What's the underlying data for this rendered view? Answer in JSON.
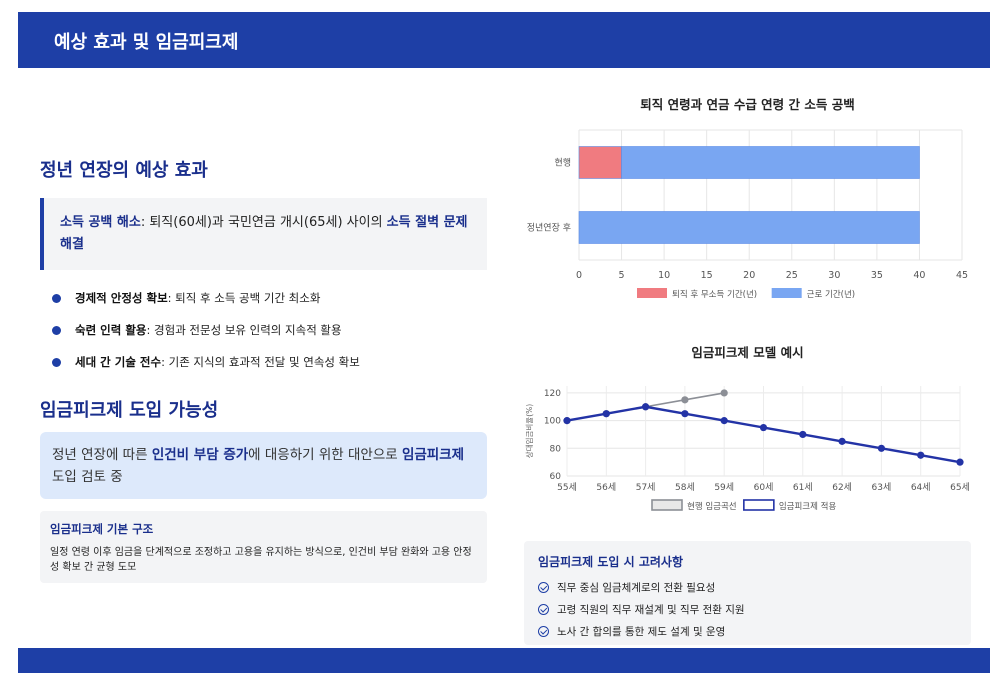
{
  "header": {
    "title": "예상 효과 및 임금피크제"
  },
  "effects": {
    "heading": "정년 연장의 예상 효과",
    "callout": {
      "label": "소득 공백 해소",
      "text1": ": 퇴직(60세)과 국민연금 개시(65세) 사이의 ",
      "emph": "소득 절벽 문제 해결"
    },
    "bullets": [
      {
        "label": "경제적 안정성 확보",
        "text": ": 퇴직 후 소득 공백 기간 최소화"
      },
      {
        "label": "숙련 인력 활용",
        "text": ": 경험과 전문성 보유 인력의 지속적 활용"
      },
      {
        "label": "세대 간 기술 전수",
        "text": ": 기존 지식의 효과적 전달 및 연속성 확보"
      }
    ]
  },
  "wagepeak": {
    "heading": "임금피크제 도입 가능성",
    "callout": {
      "t1": "정년 연장에 따른 ",
      "e1": "인건비 부담 증가",
      "t2": "에 대응하기 위한 대안으로 ",
      "e2": "임금피크제",
      "t3": " 도입 검토 중"
    },
    "structure": {
      "title": "임금피크제 기본 구조",
      "desc": "일정 연령 이후 임금을 단계적으로 조정하고 고용을 유지하는 방식으로, 인건비 부담 완화와 고용 안정성 확보 간 균형 도모"
    }
  },
  "considerations": {
    "title": "임금피크제 도입 시 고려사항",
    "items": [
      "직무 중심 임금체계로의 전환 필요성",
      "고령 직원의 직무 재설계 및 직무 전환 지원",
      "노사 간 합의를 통한 제도 설계 및 운영"
    ]
  },
  "chart_data": [
    {
      "type": "bar",
      "orientation": "horizontal",
      "stacked": true,
      "title": "퇴직 연령과 연금 수급 연령 간 소득 공백",
      "categories": [
        "현행",
        "정년연장 후"
      ],
      "series": [
        {
          "name": "퇴직 후 무소득 기간(년)",
          "color": "#f07b80",
          "values": [
            5,
            0
          ]
        },
        {
          "name": "근로 기간(년)",
          "color": "#79a6f2",
          "values": [
            35,
            40
          ]
        }
      ],
      "xlim": [
        0,
        45
      ],
      "xticks": [
        0,
        5,
        10,
        15,
        20,
        25,
        30,
        35,
        40,
        45
      ],
      "legend": "bottom",
      "grid": true
    },
    {
      "type": "line",
      "title": "임금피크제 모델 예시",
      "ylabel": "상대임금비율(%)",
      "categories": [
        "55세",
        "56세",
        "57세",
        "58세",
        "59세",
        "60세",
        "61세",
        "62세",
        "63세",
        "64세",
        "65세"
      ],
      "series": [
        {
          "name": "현행 임금곡선",
          "color": "#8c8f96",
          "values": [
            100,
            105,
            110,
            115,
            120,
            null,
            null,
            null,
            null,
            null,
            null
          ]
        },
        {
          "name": "임금피크제 적용",
          "color": "#2333a6",
          "values": [
            100,
            105,
            110,
            105,
            100,
            95,
            90,
            85,
            80,
            75,
            70
          ]
        }
      ],
      "ylim": [
        60,
        125
      ],
      "yticks": [
        60,
        80,
        100,
        120
      ],
      "legend": "bottom",
      "grid": true
    }
  ]
}
